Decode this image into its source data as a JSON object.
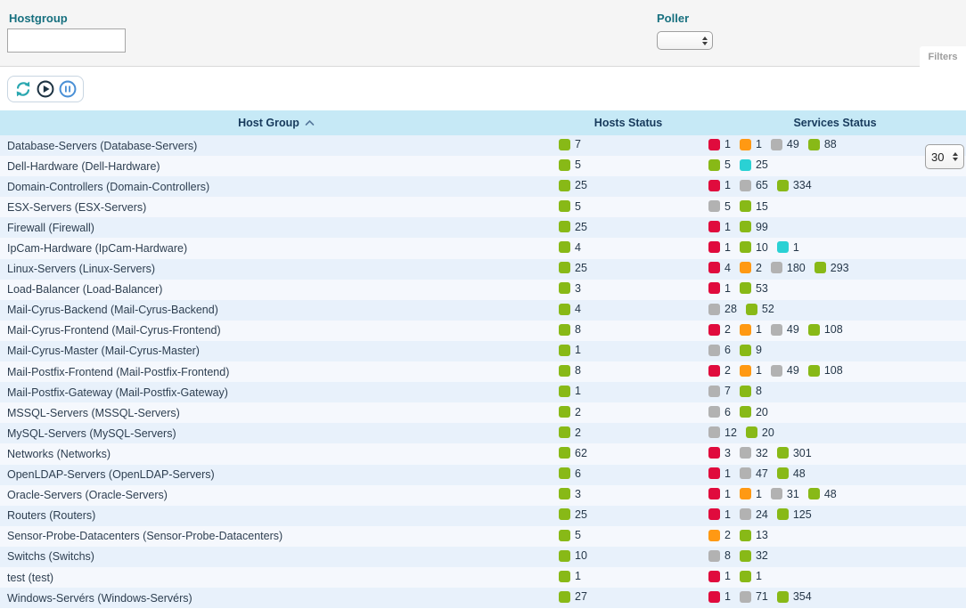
{
  "filters": {
    "hostgroup_label": "Hostgroup",
    "hostgroup_value": "",
    "poller_label": "Poller",
    "poller_value": "",
    "filters_tab": "Filters"
  },
  "toolbar": {
    "icons": [
      "refresh-icon",
      "play-icon",
      "pause-icon"
    ],
    "page_size": "30"
  },
  "status_colors": {
    "up": "#88b917",
    "ok": "#88b917",
    "critical": "#e00b3d",
    "warning": "#ff9913",
    "unknown": "#b2b2b2",
    "pending": "#2ad1d4"
  },
  "table": {
    "columns": [
      "Host Group",
      "Hosts Status",
      "Services Status"
    ],
    "sort": {
      "column": "Host Group",
      "direction": "asc"
    },
    "rows": [
      {
        "name": "Database-Servers (Database-Servers)",
        "hosts": [
          {
            "status": "up",
            "count": 7
          }
        ],
        "services": [
          {
            "status": "critical",
            "count": 1
          },
          {
            "status": "warning",
            "count": 1
          },
          {
            "status": "unknown",
            "count": 49
          },
          {
            "status": "ok",
            "count": 88
          }
        ]
      },
      {
        "name": "Dell-Hardware (Dell-Hardware)",
        "hosts": [
          {
            "status": "up",
            "count": 5
          }
        ],
        "services": [
          {
            "status": "ok",
            "count": 5
          },
          {
            "status": "pending",
            "count": 25
          }
        ]
      },
      {
        "name": "Domain-Controllers (Domain-Controllers)",
        "hosts": [
          {
            "status": "up",
            "count": 25
          }
        ],
        "services": [
          {
            "status": "critical",
            "count": 1
          },
          {
            "status": "unknown",
            "count": 65
          },
          {
            "status": "ok",
            "count": 334
          }
        ]
      },
      {
        "name": "ESX-Servers (ESX-Servers)",
        "hosts": [
          {
            "status": "up",
            "count": 5
          }
        ],
        "services": [
          {
            "status": "unknown",
            "count": 5
          },
          {
            "status": "ok",
            "count": 15
          }
        ]
      },
      {
        "name": "Firewall (Firewall)",
        "hosts": [
          {
            "status": "up",
            "count": 25
          }
        ],
        "services": [
          {
            "status": "critical",
            "count": 1
          },
          {
            "status": "ok",
            "count": 99
          }
        ]
      },
      {
        "name": "IpCam-Hardware (IpCam-Hardware)",
        "hosts": [
          {
            "status": "up",
            "count": 4
          }
        ],
        "services": [
          {
            "status": "critical",
            "count": 1
          },
          {
            "status": "ok",
            "count": 10
          },
          {
            "status": "pending",
            "count": 1
          }
        ]
      },
      {
        "name": "Linux-Servers (Linux-Servers)",
        "hosts": [
          {
            "status": "up",
            "count": 25
          }
        ],
        "services": [
          {
            "status": "critical",
            "count": 4
          },
          {
            "status": "warning",
            "count": 2
          },
          {
            "status": "unknown",
            "count": 180
          },
          {
            "status": "ok",
            "count": 293
          }
        ]
      },
      {
        "name": "Load-Balancer (Load-Balancer)",
        "hosts": [
          {
            "status": "up",
            "count": 3
          }
        ],
        "services": [
          {
            "status": "critical",
            "count": 1
          },
          {
            "status": "ok",
            "count": 53
          }
        ]
      },
      {
        "name": "Mail-Cyrus-Backend (Mail-Cyrus-Backend)",
        "hosts": [
          {
            "status": "up",
            "count": 4
          }
        ],
        "services": [
          {
            "status": "unknown",
            "count": 28
          },
          {
            "status": "ok",
            "count": 52
          }
        ]
      },
      {
        "name": "Mail-Cyrus-Frontend (Mail-Cyrus-Frontend)",
        "hosts": [
          {
            "status": "up",
            "count": 8
          }
        ],
        "services": [
          {
            "status": "critical",
            "count": 2
          },
          {
            "status": "warning",
            "count": 1
          },
          {
            "status": "unknown",
            "count": 49
          },
          {
            "status": "ok",
            "count": 108
          }
        ]
      },
      {
        "name": "Mail-Cyrus-Master (Mail-Cyrus-Master)",
        "hosts": [
          {
            "status": "up",
            "count": 1
          }
        ],
        "services": [
          {
            "status": "unknown",
            "count": 6
          },
          {
            "status": "ok",
            "count": 9
          }
        ]
      },
      {
        "name": "Mail-Postfix-Frontend (Mail-Postfix-Frontend)",
        "hosts": [
          {
            "status": "up",
            "count": 8
          }
        ],
        "services": [
          {
            "status": "critical",
            "count": 2
          },
          {
            "status": "warning",
            "count": 1
          },
          {
            "status": "unknown",
            "count": 49
          },
          {
            "status": "ok",
            "count": 108
          }
        ]
      },
      {
        "name": "Mail-Postfix-Gateway (Mail-Postfix-Gateway)",
        "hosts": [
          {
            "status": "up",
            "count": 1
          }
        ],
        "services": [
          {
            "status": "unknown",
            "count": 7
          },
          {
            "status": "ok",
            "count": 8
          }
        ]
      },
      {
        "name": "MSSQL-Servers (MSSQL-Servers)",
        "hosts": [
          {
            "status": "up",
            "count": 2
          }
        ],
        "services": [
          {
            "status": "unknown",
            "count": 6
          },
          {
            "status": "ok",
            "count": 20
          }
        ]
      },
      {
        "name": "MySQL-Servers (MySQL-Servers)",
        "hosts": [
          {
            "status": "up",
            "count": 2
          }
        ],
        "services": [
          {
            "status": "unknown",
            "count": 12
          },
          {
            "status": "ok",
            "count": 20
          }
        ]
      },
      {
        "name": "Networks (Networks)",
        "hosts": [
          {
            "status": "up",
            "count": 62
          }
        ],
        "services": [
          {
            "status": "critical",
            "count": 3
          },
          {
            "status": "unknown",
            "count": 32
          },
          {
            "status": "ok",
            "count": 301
          }
        ]
      },
      {
        "name": "OpenLDAP-Servers (OpenLDAP-Servers)",
        "hosts": [
          {
            "status": "up",
            "count": 6
          }
        ],
        "services": [
          {
            "status": "critical",
            "count": 1
          },
          {
            "status": "unknown",
            "count": 47
          },
          {
            "status": "ok",
            "count": 48
          }
        ]
      },
      {
        "name": "Oracle-Servers (Oracle-Servers)",
        "hosts": [
          {
            "status": "up",
            "count": 3
          }
        ],
        "services": [
          {
            "status": "critical",
            "count": 1
          },
          {
            "status": "warning",
            "count": 1
          },
          {
            "status": "unknown",
            "count": 31
          },
          {
            "status": "ok",
            "count": 48
          }
        ]
      },
      {
        "name": "Routers (Routers)",
        "hosts": [
          {
            "status": "up",
            "count": 25
          }
        ],
        "services": [
          {
            "status": "critical",
            "count": 1
          },
          {
            "status": "unknown",
            "count": 24
          },
          {
            "status": "ok",
            "count": 125
          }
        ]
      },
      {
        "name": "Sensor-Probe-Datacenters (Sensor-Probe-Datacenters)",
        "hosts": [
          {
            "status": "up",
            "count": 5
          }
        ],
        "services": [
          {
            "status": "warning",
            "count": 2
          },
          {
            "status": "ok",
            "count": 13
          }
        ]
      },
      {
        "name": "Switchs (Switchs)",
        "hosts": [
          {
            "status": "up",
            "count": 10
          }
        ],
        "services": [
          {
            "status": "unknown",
            "count": 8
          },
          {
            "status": "ok",
            "count": 32
          }
        ]
      },
      {
        "name": "test (test)",
        "hosts": [
          {
            "status": "up",
            "count": 1
          }
        ],
        "services": [
          {
            "status": "critical",
            "count": 1
          },
          {
            "status": "ok",
            "count": 1
          }
        ]
      },
      {
        "name": "Windows-Servérs (Windows-Servérs)",
        "hosts": [
          {
            "status": "up",
            "count": 27
          }
        ],
        "services": [
          {
            "status": "critical",
            "count": 1
          },
          {
            "status": "unknown",
            "count": 71
          },
          {
            "status": "ok",
            "count": 354
          }
        ]
      }
    ]
  }
}
